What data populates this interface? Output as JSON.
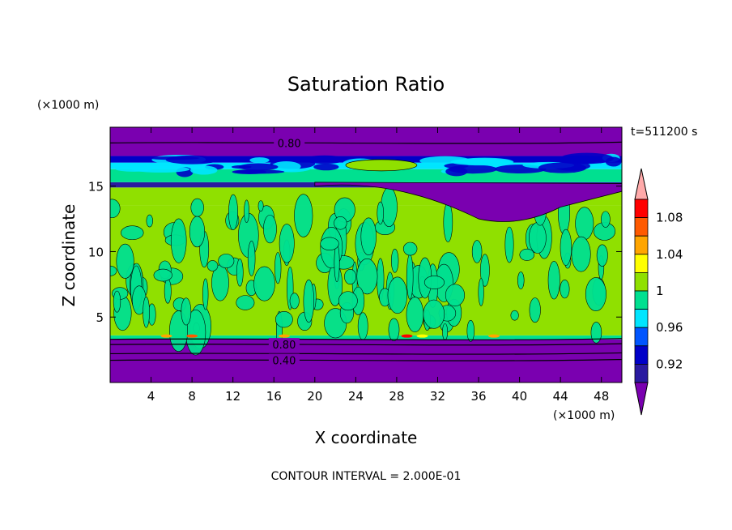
{
  "chart_data": {
    "type": "heatmap",
    "title": "Saturation Ratio",
    "xlabel": "X coordinate",
    "ylabel": "Z coordinate",
    "x_unit": "(×1000 m)",
    "y_unit": "(×1000 m)",
    "time_label": "t=511200 s",
    "footer": "CONTOUR INTERVAL = 2.000E-01",
    "xlim": [
      0,
      50
    ],
    "ylim": [
      0,
      19.5
    ],
    "x_ticks": [
      4,
      8,
      12,
      16,
      20,
      24,
      28,
      32,
      36,
      40,
      44,
      48
    ],
    "y_ticks": [
      5,
      10,
      15
    ],
    "contour_labels": [
      {
        "text": "0.80",
        "x": 17.5,
        "z": 18.3
      },
      {
        "text": "0.80",
        "x": 17.0,
        "z": 2.9
      },
      {
        "text": "0.40",
        "x": 17.0,
        "z": 1.7
      }
    ],
    "colorbar": {
      "levels": [
        0.92,
        0.94,
        0.96,
        0.98,
        1.0,
        1.02,
        1.04,
        1.06,
        1.08
      ],
      "tick_labels": [
        "0.92",
        "0.96",
        "1",
        "1.04",
        "1.08"
      ],
      "colors": [
        "#7a00b0",
        "#2a1aa0",
        "#0000c8",
        "#0055ff",
        "#00e5ff",
        "#00e090",
        "#90e000",
        "#ffff00",
        "#ffa500",
        "#ff5a00",
        "#ff0000",
        "#ffaaaa"
      ]
    },
    "layers": [
      {
        "z0": 0.0,
        "z1": 3.3,
        "color": "#7a00b0"
      },
      {
        "z0": 3.3,
        "z1": 3.6,
        "color": "#00e090"
      },
      {
        "z0": 3.6,
        "z1": 13.5,
        "color": "#90e000"
      },
      {
        "z0": 13.5,
        "z1": 14.9,
        "color": "#90e000"
      },
      {
        "z0": 14.9,
        "z1": 15.3,
        "color": "#2a1aa0"
      },
      {
        "z0": 15.3,
        "z1": 16.3,
        "color": "#00e090"
      },
      {
        "z0": 16.3,
        "z1": 16.8,
        "color": "#00e5ff"
      },
      {
        "z0": 16.8,
        "z1": 17.3,
        "color": "#0000c8"
      },
      {
        "z0": 17.3,
        "z1": 19.5,
        "color": "#7a00b0"
      }
    ]
  }
}
